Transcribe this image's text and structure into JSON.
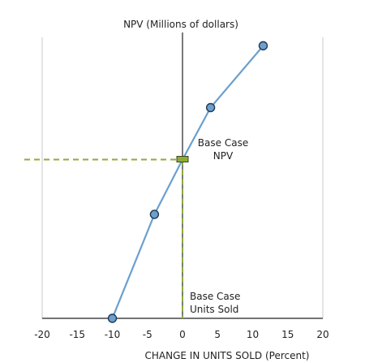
{
  "chart_data": {
    "type": "line",
    "ylabel": "NPV (Millions of dollars)",
    "xlabel": "CHANGE IN UNITS SOLD (Percent)",
    "xlim": [
      -20,
      20
    ],
    "x_ticks": [
      "-20",
      "-15",
      "-10",
      "-5",
      "0",
      "5",
      "10",
      "15",
      "20"
    ],
    "series": [
      {
        "x": [
          -10,
          -4,
          0,
          4,
          11.5
        ],
        "y": [
          0,
          0.37,
          0.565,
          0.75,
          0.97
        ]
      }
    ],
    "base_case": {
      "x": 0,
      "y": 0.565
    },
    "annotations": {
      "npv_line1": "Base Case",
      "npv_line2": "NPV",
      "units_line1": "Base Case",
      "units_line2": "Units Sold"
    },
    "colors": {
      "series": "#6aa0cf",
      "marker_fill": "#6f9fcc",
      "marker_stroke": "#1d3a57",
      "base_case": "#8faa3a",
      "axis": "#222222"
    }
  }
}
